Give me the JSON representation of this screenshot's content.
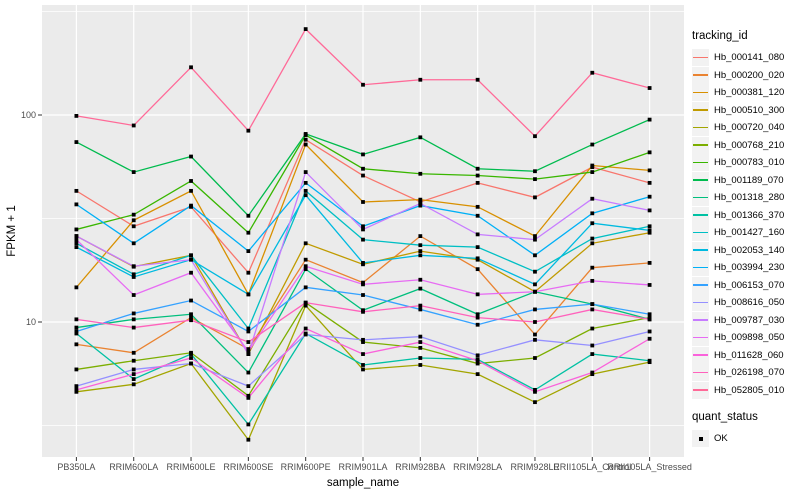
{
  "chart_data": {
    "type": "line",
    "title": "",
    "xlabel": "sample_name",
    "ylabel": "FPKM + 1",
    "x_scale": "discrete",
    "y_scale": "log10",
    "ylim": [
      2.2,
      320
    ],
    "y_major_ticks": [
      100,
      10
    ],
    "y_minor_ticks": [
      316.23,
      31.623,
      3.1623
    ],
    "grid": true,
    "legend_position": "right",
    "point_shape": "filled-square",
    "point_color": "#000000",
    "categories": [
      "PB350LA",
      "RRIM600LA",
      "RRIM600LE",
      "RRIM600SE",
      "RRIM600PE",
      "RRIM901LA",
      "RRIM928BA",
      "RRIM928LA",
      "RRIM928LE",
      "RRII105LA_Control",
      "RRII105LA_Stressed"
    ],
    "series": [
      {
        "name": "Hb_000141_080",
        "color": "#F8766D",
        "values": [
          43,
          29,
          36,
          17.3,
          76,
          51,
          38,
          47,
          40,
          56,
          47
        ]
      },
      {
        "name": "Hb_000200_020",
        "color": "#EA8331",
        "values": [
          7.8,
          7.1,
          10.5,
          7.4,
          20,
          15.5,
          26,
          18,
          8.7,
          18.3,
          19.3
        ]
      },
      {
        "name": "Hb_000381_120",
        "color": "#D89000",
        "values": [
          14.7,
          31,
          43,
          13.6,
          72,
          38,
          39,
          36,
          26,
          57,
          54
        ]
      },
      {
        "name": "Hb_000510_300",
        "color": "#C09B00",
        "values": [
          26,
          18.5,
          21,
          7.0,
          24,
          19,
          22,
          20,
          14,
          24,
          27
        ]
      },
      {
        "name": "Hb_000720_040",
        "color": "#A3A500",
        "values": [
          4.6,
          5.0,
          6.3,
          2.7,
          12,
          5.9,
          6.2,
          5.6,
          4.1,
          5.6,
          6.4
        ]
      },
      {
        "name": "Hb_000768_210",
        "color": "#7CAE00",
        "values": [
          5.9,
          6.5,
          7.1,
          4.4,
          12.4,
          8.0,
          7.5,
          6.3,
          6.7,
          9.3,
          10.5
        ]
      },
      {
        "name": "Hb_000783_010",
        "color": "#39B600",
        "values": [
          28,
          33,
          48,
          27,
          80,
          55,
          52,
          51,
          49,
          53,
          66
        ]
      },
      {
        "name": "Hb_001189_070",
        "color": "#00BB4E",
        "values": [
          74,
          53,
          63,
          32.6,
          81,
          64.5,
          78,
          55,
          53.5,
          72,
          95
        ]
      },
      {
        "name": "Hb_001318_280",
        "color": "#00BF7D",
        "values": [
          9.4,
          10.3,
          10.9,
          5.7,
          18,
          11.4,
          14.5,
          10.9,
          14,
          12.2,
          10.3
        ]
      },
      {
        "name": "Hb_001366_370",
        "color": "#00C1A3",
        "values": [
          8.8,
          5.3,
          7.0,
          3.2,
          8.8,
          6.2,
          6.7,
          6.6,
          4.7,
          7.0,
          6.5
        ]
      },
      {
        "name": "Hb_001427_160",
        "color": "#00BFC4",
        "values": [
          24,
          17,
          21,
          9.3,
          43,
          25,
          23.5,
          23,
          17.5,
          25.3,
          29
        ]
      },
      {
        "name": "Hb_002053_140",
        "color": "#00BAE0",
        "values": [
          23,
          16.5,
          20,
          13.6,
          41,
          19.3,
          21,
          20.3,
          15.2,
          30,
          27.7
        ]
      },
      {
        "name": "Hb_003994_230",
        "color": "#00B0F6",
        "values": [
          37,
          24,
          36.5,
          22,
          47,
          29,
          36.5,
          32.6,
          21,
          33.5,
          40.3
        ]
      },
      {
        "name": "Hb_006153_070",
        "color": "#35A2FF",
        "values": [
          9.0,
          11,
          12.7,
          9.0,
          14.7,
          13.5,
          11.5,
          9.7,
          11.5,
          12.2,
          10.9
        ]
      },
      {
        "name": "Hb_008616_050",
        "color": "#9590FF",
        "values": [
          4.9,
          5.9,
          6.3,
          4.9,
          8.7,
          8.2,
          8.5,
          6.9,
          8.2,
          7.7,
          9.0
        ]
      },
      {
        "name": "Hb_009787_030",
        "color": "#C77CFF",
        "values": [
          26,
          18.6,
          20,
          7.0,
          53,
          28,
          37.4,
          26.5,
          25,
          39.4,
          34.6
        ]
      },
      {
        "name": "Hb_009898_050",
        "color": "#E76BF3",
        "values": [
          25,
          13.5,
          17.3,
          7.2,
          18.6,
          15.2,
          16,
          13.6,
          14,
          15.8,
          15.1
        ]
      },
      {
        "name": "Hb_011628_060",
        "color": "#FA62DB",
        "values": [
          4.7,
          5.6,
          6.7,
          4.3,
          9.3,
          7.0,
          8.0,
          6.5,
          4.6,
          5.7,
          8.3
        ]
      },
      {
        "name": "Hb_026198_070",
        "color": "#FF62BC",
        "values": [
          10.3,
          9.4,
          10.2,
          8.0,
          12.4,
          11.2,
          12,
          10.5,
          10,
          11.5,
          10.3
        ]
      },
      {
        "name": "Hb_052805_010",
        "color": "#FF6A98",
        "values": [
          99,
          89,
          170,
          84,
          260,
          140,
          148,
          148,
          79,
          160,
          135
        ]
      }
    ],
    "legend": {
      "tracking_title": "tracking_id",
      "quant_title": "quant_status",
      "quant_ok_label": "OK"
    },
    "colors": {
      "panel_bg": "#EBEBEB",
      "gridline": "#FFFFFF",
      "tick_label": "#4D4D4D",
      "tick_mark": "#333333",
      "axis_title": "#000000",
      "legend_key_bg": "#F2F2F2"
    }
  }
}
